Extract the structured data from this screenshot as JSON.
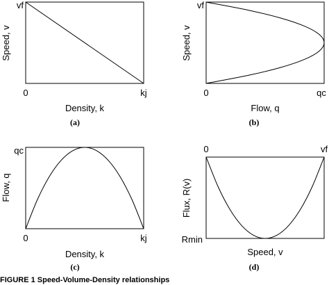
{
  "chart_data": [
    {
      "type": "line",
      "panel_label": "(a)",
      "xlabel": "Density, k",
      "ylabel": "Speed, v",
      "x_ticks": [
        "0",
        "kj"
      ],
      "y_ticks": [
        "vf"
      ],
      "xlim": [
        0,
        1
      ],
      "ylim": [
        0,
        1
      ],
      "series": [
        {
          "x": [
            0,
            1
          ],
          "y": [
            1,
            0
          ]
        }
      ]
    },
    {
      "type": "line",
      "panel_label": "(b)",
      "xlabel": "Flow, q",
      "ylabel": "Speed, v",
      "x_ticks": [
        "0",
        "qc"
      ],
      "y_ticks": [
        "vf"
      ],
      "xlim": [
        0,
        1
      ],
      "ylim": [
        0,
        1
      ],
      "series": [
        {
          "x": [
            0,
            0.36,
            0.64,
            0.84,
            0.96,
            1,
            0.96,
            0.84,
            0.64,
            0.36,
            0
          ],
          "y": [
            1,
            0.9,
            0.8,
            0.7,
            0.6,
            0.5,
            0.4,
            0.3,
            0.2,
            0.1,
            0
          ]
        }
      ]
    },
    {
      "type": "line",
      "panel_label": "(c)",
      "xlabel": "Density, k",
      "ylabel": "Flow, q",
      "x_ticks": [
        "0",
        "kj"
      ],
      "y_ticks": [
        "qc"
      ],
      "xlim": [
        0,
        1
      ],
      "ylim": [
        0,
        1
      ],
      "series": [
        {
          "x": [
            0,
            0.1,
            0.2,
            0.3,
            0.4,
            0.5,
            0.6,
            0.7,
            0.8,
            0.9,
            1
          ],
          "y": [
            0,
            0.36,
            0.64,
            0.84,
            0.96,
            1,
            0.96,
            0.84,
            0.64,
            0.36,
            0
          ]
        }
      ]
    },
    {
      "type": "line",
      "panel_label": "(d)",
      "xlabel": "Speed, v",
      "ylabel": "Flux, R(v)",
      "x_ticks": [
        "0",
        "vf"
      ],
      "y_ticks": [
        "Rmin"
      ],
      "xlim": [
        0,
        1
      ],
      "ylim": [
        0,
        1
      ],
      "series": [
        {
          "x": [
            0,
            0.1,
            0.2,
            0.3,
            0.4,
            0.5,
            0.6,
            0.7,
            0.8,
            0.9,
            1
          ],
          "y": [
            1,
            0.64,
            0.36,
            0.16,
            0.04,
            0,
            0.04,
            0.16,
            0.36,
            0.64,
            1
          ]
        }
      ]
    }
  ],
  "caption": "FIGURE 1   Speed-Volume-Density relationships"
}
